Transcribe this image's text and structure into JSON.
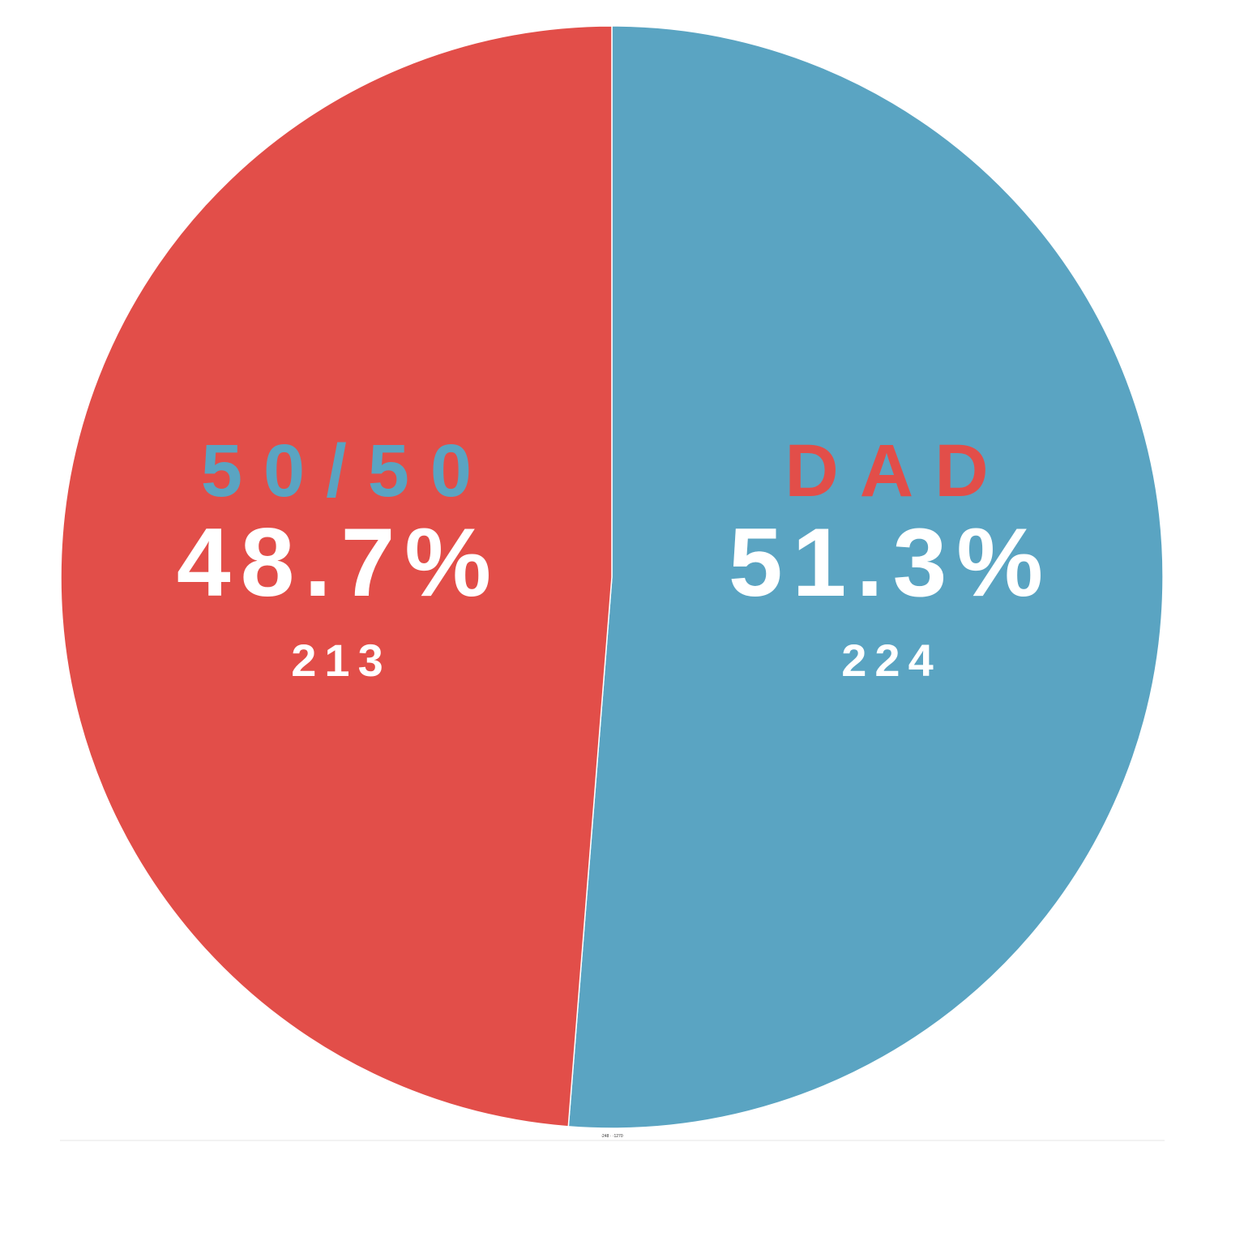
{
  "chart_data": {
    "type": "pie",
    "start": "top",
    "direction": "clockwise",
    "slices": [
      {
        "name": "DAD",
        "percent_label": "51.3%",
        "count_label": "224",
        "value": 224,
        "color": "#5aa4c2",
        "name_color": "#e24e49"
      },
      {
        "name": "50/50",
        "percent_label": "48.7%",
        "count_label": "213",
        "value": 213,
        "color": "#e24e49",
        "name_color": "#5aa4c2"
      }
    ],
    "footnote": "·248 · ·1270"
  }
}
